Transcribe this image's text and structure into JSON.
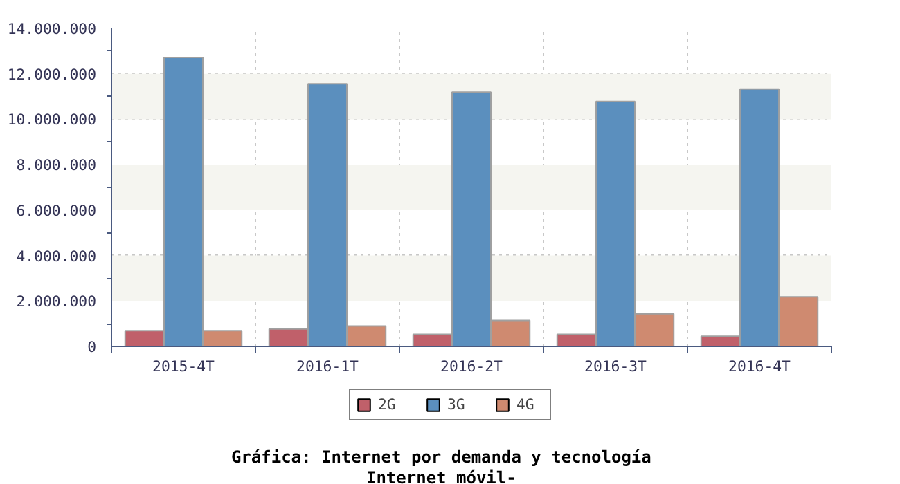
{
  "chart_data": {
    "type": "bar",
    "title": "Gráfica: Internet por demanda y tecnología",
    "subtitle": "Internet móvil-",
    "categories": [
      "2015-4T",
      "2016-1T",
      "2016-2T",
      "2016-3T",
      "2016-4T"
    ],
    "series": [
      {
        "name": "2G",
        "color": "#c0606a",
        "values": [
          690000,
          770000,
          530000,
          530000,
          450000
        ]
      },
      {
        "name": "3G",
        "color": "#5b8fbe",
        "values": [
          12720000,
          11560000,
          11190000,
          10780000,
          11330000
        ]
      },
      {
        "name": "4G",
        "color": "#cf8a70",
        "values": [
          690000,
          900000,
          1140000,
          1440000,
          2180000
        ]
      }
    ],
    "ylim": [
      0,
      14000000
    ],
    "yticks": [
      {
        "value": 0,
        "label": "0"
      },
      {
        "value": 2000000,
        "label": "2.000.000"
      },
      {
        "value": 4000000,
        "label": "4.000.000"
      },
      {
        "value": 6000000,
        "label": "6.000.000"
      },
      {
        "value": 8000000,
        "label": "8.000.000"
      },
      {
        "value": 10000000,
        "label": "10.000.000"
      },
      {
        "value": 12000000,
        "label": "12.000.000"
      },
      {
        "value": 14000000,
        "label": "14.000.000"
      }
    ],
    "bands": [
      {
        "axis": "y",
        "from": 2000000,
        "to": 4000000,
        "color": "#f5f5f0"
      },
      {
        "axis": "y",
        "from": 6000000,
        "to": 8000000,
        "color": "#f5f5f0"
      },
      {
        "axis": "y",
        "from": 10000000,
        "to": 12000000,
        "color": "#f5f5f0"
      }
    ],
    "grid": true,
    "legend": "bottom"
  }
}
